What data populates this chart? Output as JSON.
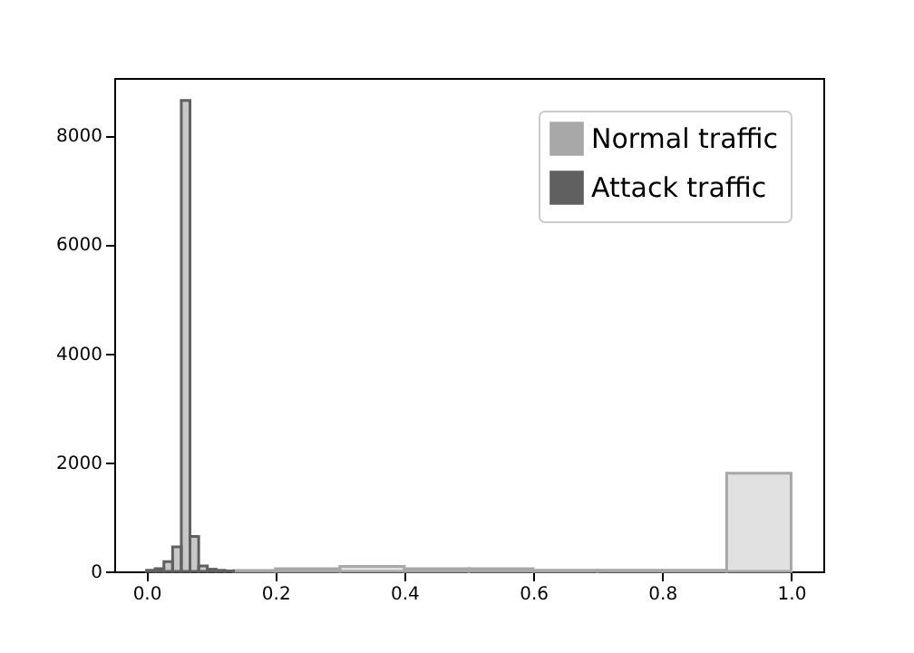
{
  "chart_data": {
    "type": "histogram",
    "bins": [
      0,
      0.0135,
      0.027,
      0.0405,
      0.054,
      0.0675,
      0.081,
      0.0945,
      0.108,
      0.1215,
      0.135,
      0.2,
      0.3,
      0.4,
      0.5,
      0.6,
      0.7,
      0.8,
      0.9,
      1.0
    ],
    "series": [
      {
        "name": "Normal traffic",
        "color": "#a8a8a8",
        "values": [
          null,
          null,
          null,
          null,
          null,
          null,
          null,
          null,
          null,
          null,
          15,
          50,
          90,
          50,
          50,
          20,
          20,
          20,
          1800
        ]
      },
      {
        "name": "Attack traffic",
        "color": "#606060",
        "values": [
          20,
          50,
          180,
          450,
          8640,
          640,
          100,
          40,
          20,
          10,
          null,
          null,
          null,
          null,
          null,
          null,
          null,
          null,
          null
        ]
      }
    ],
    "xlim": [
      -0.05,
      1.05
    ],
    "xticks": [
      {
        "value": 0,
        "label": "0.0"
      },
      0.2,
      0.4,
      0.6,
      0.8,
      {
        "value": 1,
        "label": "1.0"
      }
    ],
    "ylim": [
      0,
      9050
    ],
    "yticks": [
      0,
      2000,
      4000,
      6000,
      8000
    ],
    "legend": "top right"
  }
}
